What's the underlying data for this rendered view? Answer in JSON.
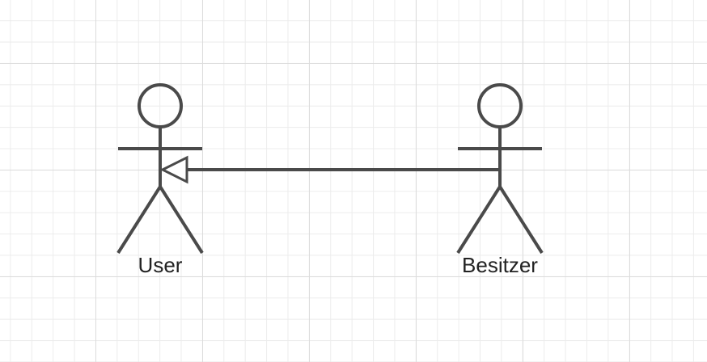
{
  "diagram": {
    "type": "uml-use-case",
    "actors": [
      {
        "id": "user",
        "label": "User"
      },
      {
        "id": "besitzer",
        "label": "Besitzer"
      }
    ],
    "relationships": [
      {
        "type": "generalization",
        "from": "besitzer",
        "to": "user"
      }
    ],
    "colors": {
      "stroke": "#4a4a4a",
      "grid_major": "#dcdcdc",
      "grid_minor": "#ececec",
      "background": "#ffffff"
    }
  }
}
